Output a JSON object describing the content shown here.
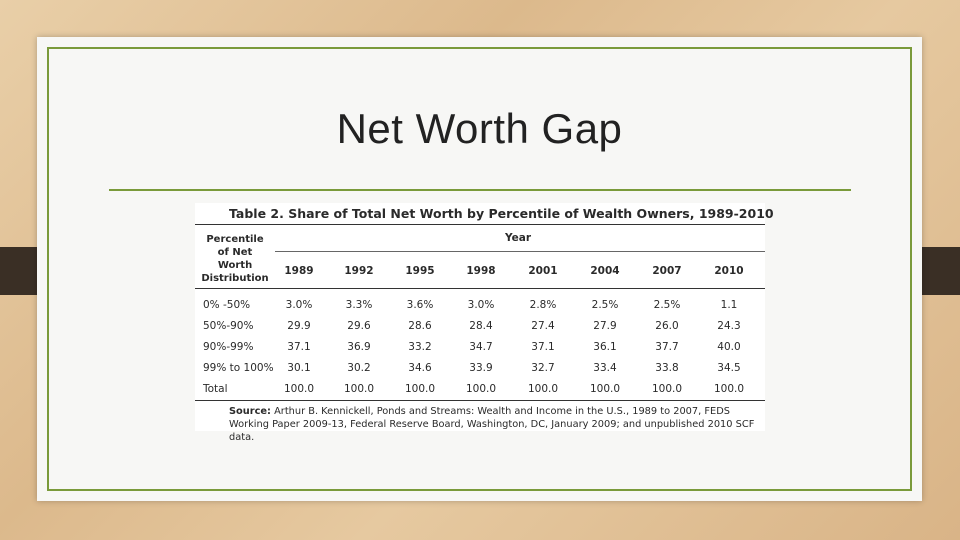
{
  "slide": {
    "title": "Net Worth Gap"
  },
  "table": {
    "caption": "Table 2. Share of Total Net Worth by Percentile of Wealth Owners, 1989-2010",
    "row_header": [
      "Percentile",
      "of Net",
      "Worth",
      "Distribution"
    ],
    "year_header": "Year",
    "years": [
      "1989",
      "1992",
      "1995",
      "1998",
      "2001",
      "2004",
      "2007",
      "2010"
    ],
    "rows": [
      {
        "label": "0% -50%",
        "values": [
          "3.0%",
          "3.3%",
          "3.6%",
          "3.0%",
          "2.8%",
          "2.5%",
          "2.5%",
          "1.1"
        ]
      },
      {
        "label": "50%-90%",
        "values": [
          "29.9",
          "29.6",
          "28.6",
          "28.4",
          "27.4",
          "27.9",
          "26.0",
          "24.3"
        ]
      },
      {
        "label": "90%-99%",
        "values": [
          "37.1",
          "36.9",
          "33.2",
          "34.7",
          "37.1",
          "36.1",
          "37.7",
          "40.0"
        ]
      },
      {
        "label": "99% to 100%",
        "values": [
          "30.1",
          "30.2",
          "34.6",
          "33.9",
          "32.7",
          "33.4",
          "33.8",
          "34.5"
        ]
      },
      {
        "label": "Total",
        "values": [
          "100.0",
          "100.0",
          "100.0",
          "100.0",
          "100.0",
          "100.0",
          "100.0",
          "100.0"
        ]
      }
    ],
    "source_label": "Source:",
    "source_text": "Arthur B. Kennickell, Ponds and Streams: Wealth and Income in the U.S., 1989 to 2007, FEDS Working Paper 2009-13, Federal Reserve Board, Washington, DC, January 2009; and unpublished 2010 SCF data."
  }
}
